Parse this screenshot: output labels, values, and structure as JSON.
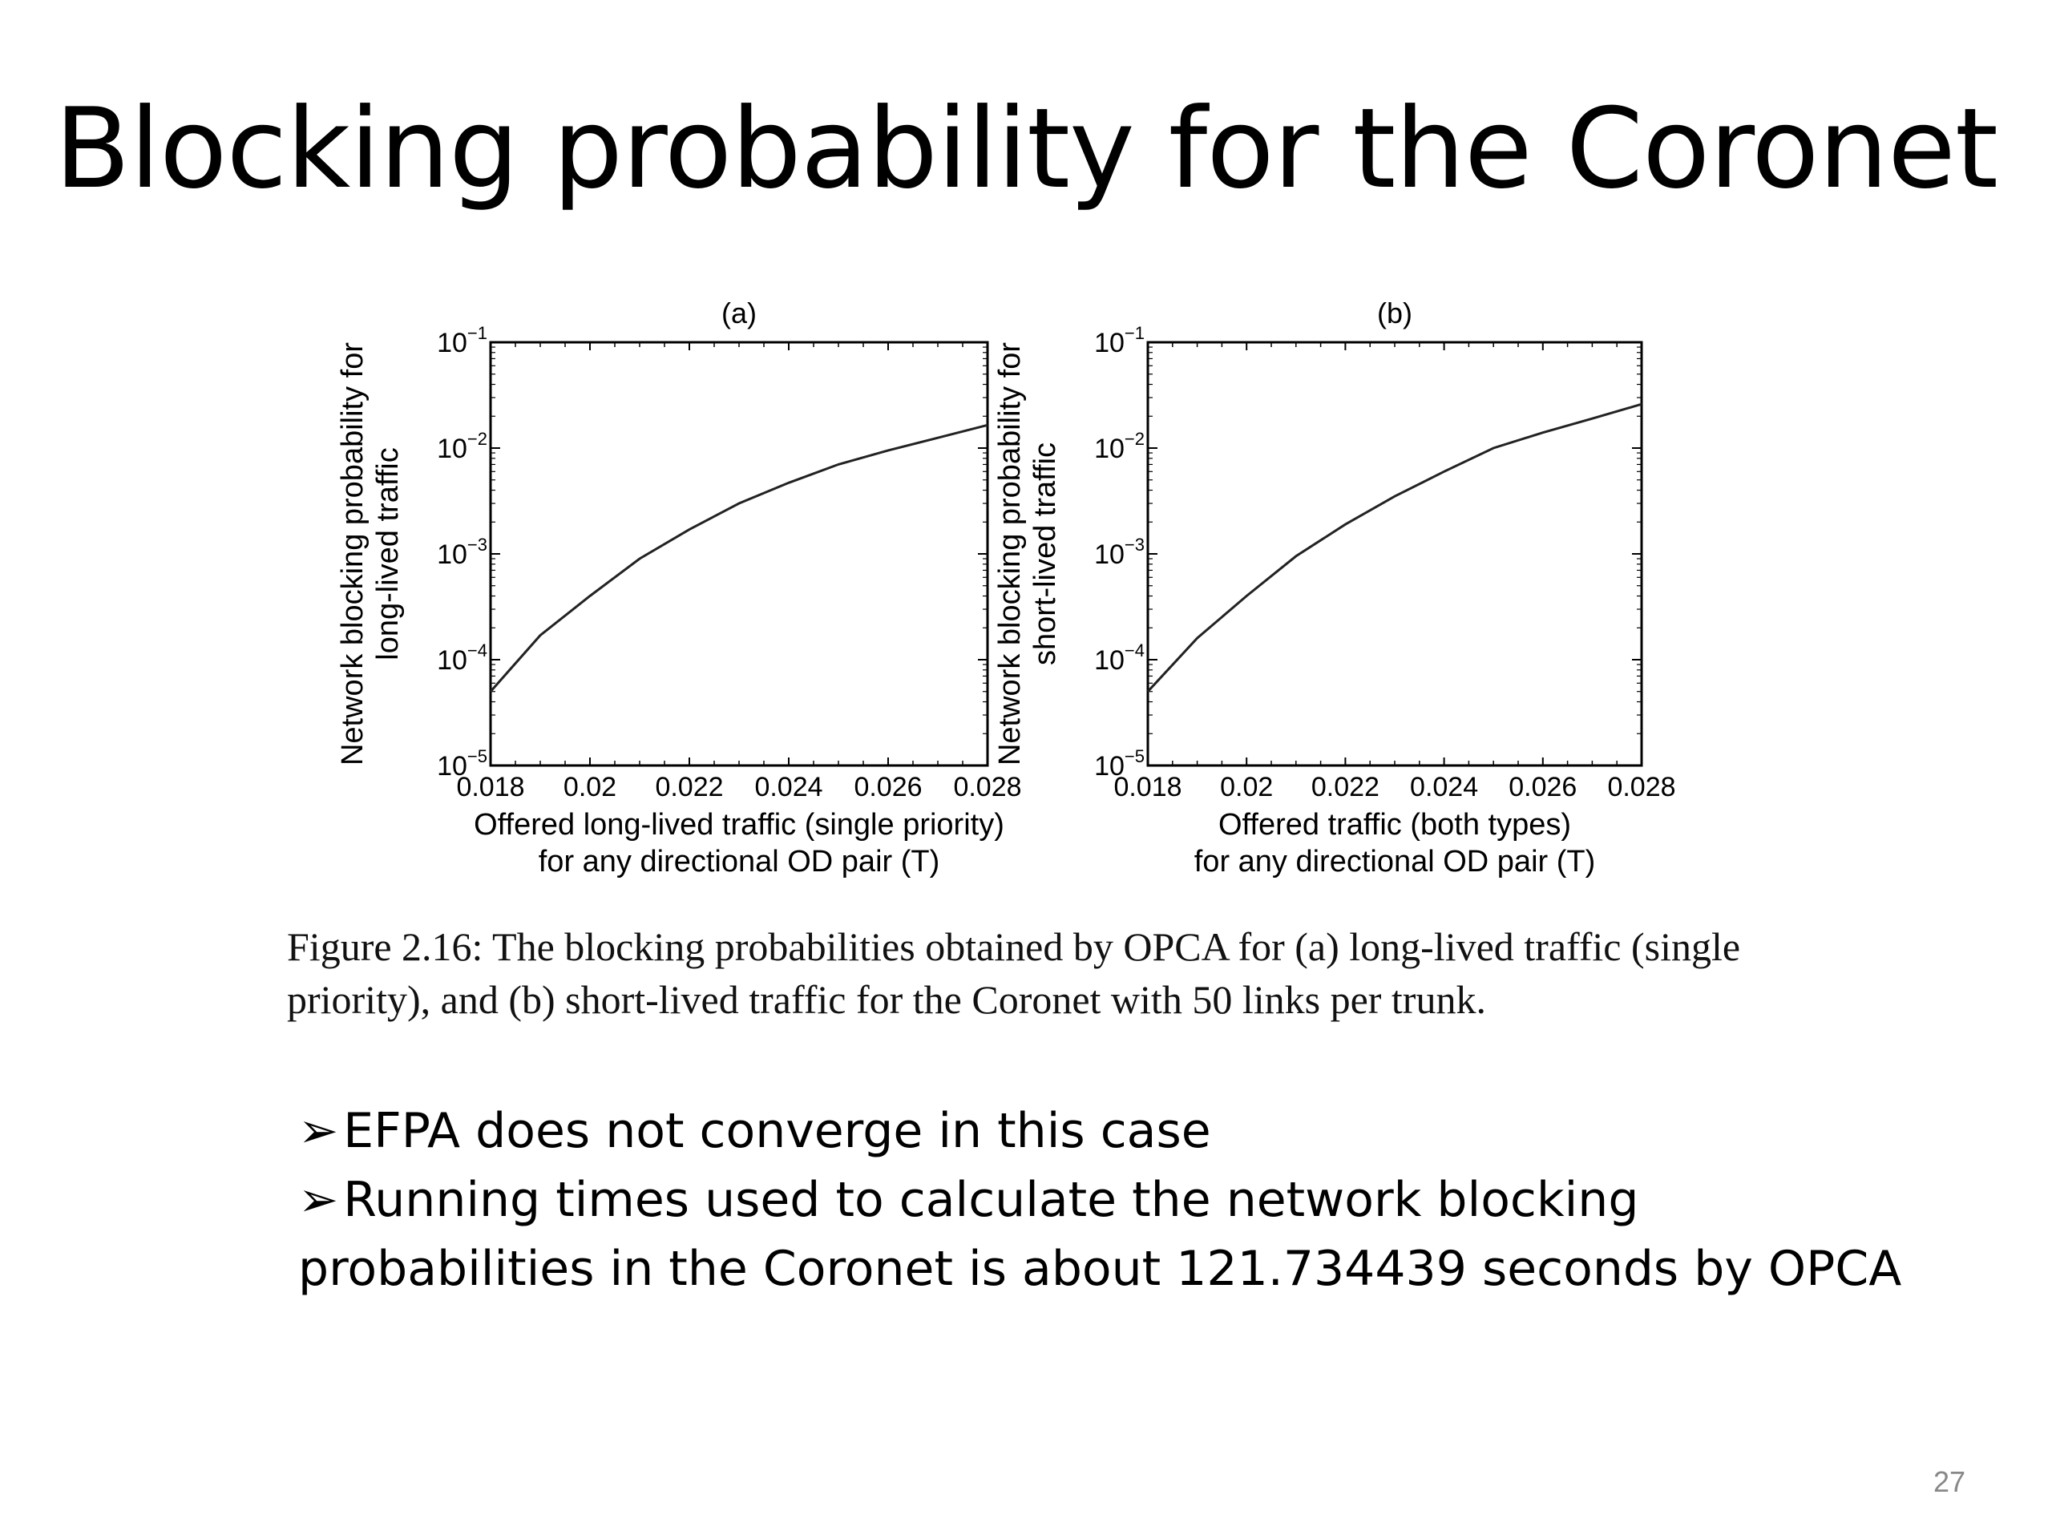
{
  "slide": {
    "title": "Blocking probability for the Coronet",
    "caption": "Figure 2.16: The blocking probabilities obtained by OPCA for (a) long-lived traffic (single priority), and (b) short-lived traffic for the Coronet with 50 links per trunk.",
    "bullets": [
      "EFPA  does not converge in this case",
      "Running times used to calculate the network blocking probabilities in the Coronet is about 121.734439 seconds by OPCA"
    ],
    "bullet_marker": "➢",
    "page_number": "27"
  },
  "chart_data": [
    {
      "type": "line",
      "title": "(a)",
      "xlabel": [
        "Offered long-lived traffic (single priority)",
        "for any directional OD pair (T)"
      ],
      "ylabel": [
        "Network blocking probability for",
        "long-lived traffic"
      ],
      "xlim": [
        0.018,
        0.028
      ],
      "ylim": [
        1e-05,
        0.1
      ],
      "yscale": "log",
      "xticks": [
        "0.018",
        "0.02",
        "0.022",
        "0.024",
        "0.026",
        "0.028"
      ],
      "yticks": [
        {
          "base": "10",
          "exp": "−5"
        },
        {
          "base": "10",
          "exp": "−4"
        },
        {
          "base": "10",
          "exp": "−3"
        },
        {
          "base": "10",
          "exp": "−2"
        },
        {
          "base": "10",
          "exp": "−1"
        }
      ],
      "grid": false,
      "series": [
        {
          "x": [
            0.018,
            0.019,
            0.02,
            0.021,
            0.022,
            0.023,
            0.024,
            0.025,
            0.026,
            0.027,
            0.028
          ],
          "y": [
            5e-05,
            0.00017,
            0.0004,
            0.0009,
            0.0017,
            0.003,
            0.0047,
            0.007,
            0.0095,
            0.0125,
            0.0165
          ]
        }
      ]
    },
    {
      "type": "line",
      "title": "(b)",
      "xlabel": [
        "Offered traffic (both types)",
        "for any directional OD pair (T)"
      ],
      "ylabel": [
        "Network blocking probability for",
        "short-lived traffic"
      ],
      "xlim": [
        0.018,
        0.028
      ],
      "ylim": [
        1e-05,
        0.1
      ],
      "yscale": "log",
      "xticks": [
        "0.018",
        "0.02",
        "0.022",
        "0.024",
        "0.026",
        "0.028"
      ],
      "yticks": [
        {
          "base": "10",
          "exp": "−5"
        },
        {
          "base": "10",
          "exp": "−4"
        },
        {
          "base": "10",
          "exp": "−3"
        },
        {
          "base": "10",
          "exp": "−2"
        },
        {
          "base": "10",
          "exp": "−1"
        }
      ],
      "grid": false,
      "series": [
        {
          "x": [
            0.018,
            0.019,
            0.02,
            0.021,
            0.022,
            0.023,
            0.024,
            0.025,
            0.026,
            0.027,
            0.028
          ],
          "y": [
            5e-05,
            0.00016,
            0.0004,
            0.00095,
            0.0019,
            0.0035,
            0.006,
            0.01,
            0.014,
            0.019,
            0.026
          ]
        }
      ]
    }
  ]
}
